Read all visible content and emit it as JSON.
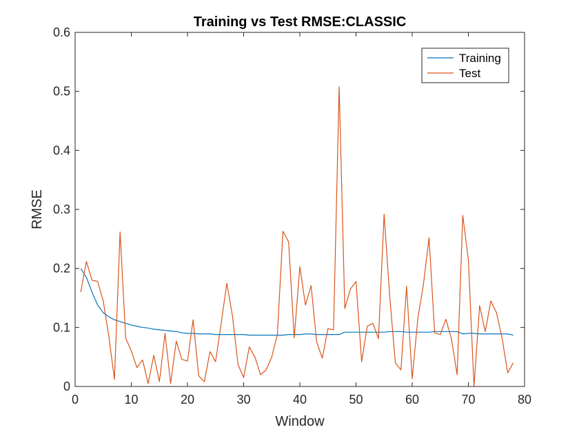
{
  "chart_data": {
    "type": "line",
    "title": "Training vs Test RMSE:CLASSIC",
    "xlabel": "Window",
    "ylabel": "RMSE",
    "xlim": [
      0,
      80
    ],
    "ylim": [
      0,
      0.6
    ],
    "xticks": [
      0,
      10,
      20,
      30,
      40,
      50,
      60,
      70,
      80
    ],
    "yticks": [
      0,
      0.1,
      0.2,
      0.3,
      0.4,
      0.5,
      0.6
    ],
    "xtick_labels": [
      "0",
      "10",
      "20",
      "30",
      "40",
      "50",
      "60",
      "70",
      "80"
    ],
    "ytick_labels": [
      "0",
      "0.1",
      "0.2",
      "0.3",
      "0.4",
      "0.5",
      "0.6"
    ],
    "grid": false,
    "legend_position": "top-right",
    "x": [
      1,
      2,
      3,
      4,
      5,
      6,
      7,
      8,
      9,
      10,
      11,
      12,
      13,
      14,
      15,
      16,
      17,
      18,
      19,
      20,
      21,
      22,
      23,
      24,
      25,
      26,
      27,
      28,
      29,
      30,
      31,
      32,
      33,
      34,
      35,
      36,
      37,
      38,
      39,
      40,
      41,
      42,
      43,
      44,
      45,
      46,
      47,
      48,
      49,
      50,
      51,
      52,
      53,
      54,
      55,
      56,
      57,
      58,
      59,
      60,
      61,
      62,
      63,
      64,
      65,
      66,
      67,
      68,
      69,
      70,
      71,
      72,
      73,
      74,
      75,
      76,
      77,
      78
    ],
    "series": [
      {
        "name": "Training",
        "color": "#0072BD",
        "values": [
          0.2,
          0.185,
          0.16,
          0.138,
          0.125,
          0.118,
          0.113,
          0.11,
          0.107,
          0.104,
          0.102,
          0.1,
          0.099,
          0.097,
          0.096,
          0.095,
          0.094,
          0.093,
          0.091,
          0.09,
          0.09,
          0.089,
          0.089,
          0.089,
          0.088,
          0.088,
          0.088,
          0.088,
          0.088,
          0.088,
          0.087,
          0.087,
          0.087,
          0.087,
          0.087,
          0.087,
          0.087,
          0.088,
          0.088,
          0.088,
          0.089,
          0.089,
          0.088,
          0.088,
          0.088,
          0.088,
          0.088,
          0.092,
          0.092,
          0.092,
          0.092,
          0.092,
          0.092,
          0.092,
          0.092,
          0.093,
          0.093,
          0.093,
          0.092,
          0.092,
          0.092,
          0.092,
          0.092,
          0.093,
          0.093,
          0.093,
          0.093,
          0.093,
          0.089,
          0.09,
          0.09,
          0.089,
          0.089,
          0.089,
          0.089,
          0.089,
          0.089,
          0.087
        ]
      },
      {
        "name": "Test",
        "color": "#D95319",
        "values": [
          0.16,
          0.212,
          0.18,
          0.178,
          0.145,
          0.085,
          0.012,
          0.262,
          0.082,
          0.06,
          0.032,
          0.045,
          0.005,
          0.053,
          0.008,
          0.09,
          0.005,
          0.077,
          0.046,
          0.043,
          0.113,
          0.018,
          0.008,
          0.059,
          0.042,
          0.107,
          0.175,
          0.12,
          0.037,
          0.015,
          0.067,
          0.05,
          0.02,
          0.028,
          0.05,
          0.088,
          0.263,
          0.245,
          0.082,
          0.203,
          0.138,
          0.171,
          0.075,
          0.048,
          0.098,
          0.096,
          0.508,
          0.132,
          0.165,
          0.178,
          0.042,
          0.102,
          0.107,
          0.081,
          0.292,
          0.153,
          0.04,
          0.028,
          0.17,
          0.013,
          0.115,
          0.173,
          0.252,
          0.091,
          0.088,
          0.114,
          0.08,
          0.02,
          0.29,
          0.215,
          0.0,
          0.137,
          0.093,
          0.145,
          0.125,
          0.082,
          0.023,
          0.04
        ]
      }
    ]
  }
}
